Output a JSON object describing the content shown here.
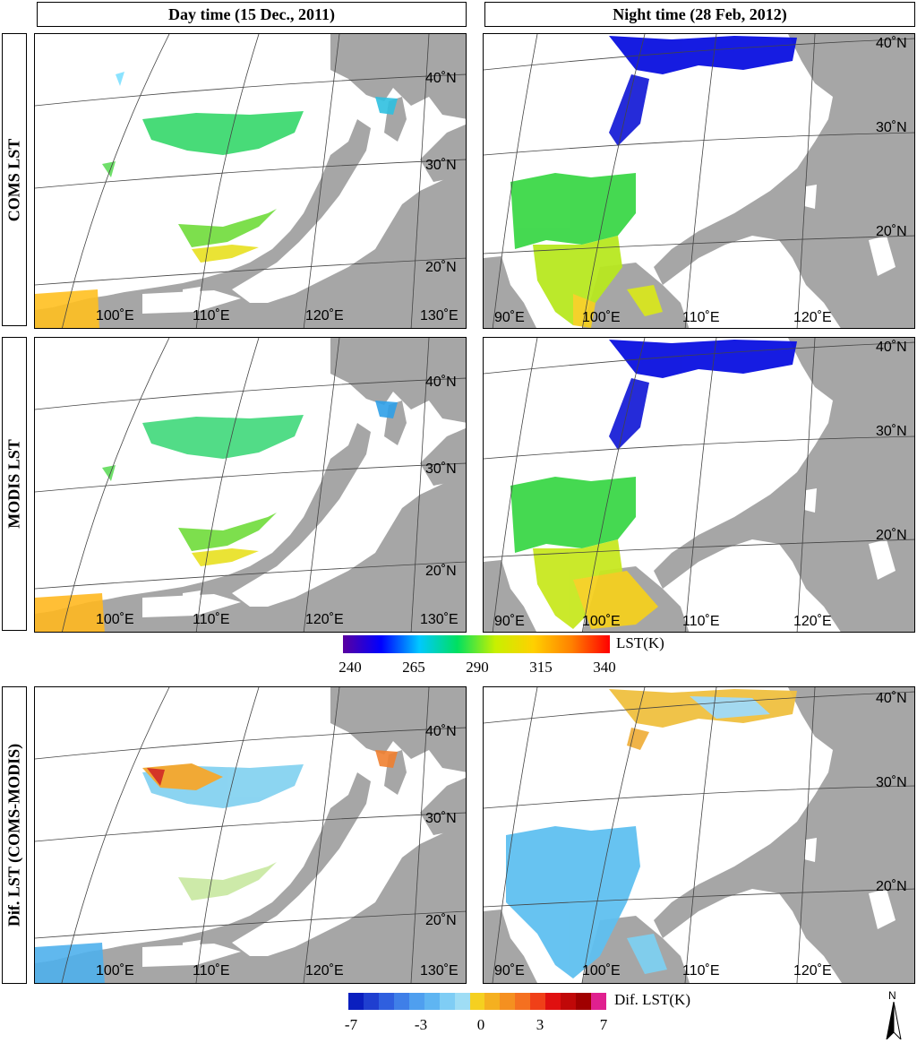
{
  "columns": [
    "Day time (15 Dec., 2011)",
    "Night time (28 Feb, 2012)"
  ],
  "rows": [
    "COMS LST",
    "MODIS LST",
    "Dif. LST (COMS-MODIS)"
  ],
  "day_labels": {
    "lat": [
      "40˚N",
      "30˚N",
      "20˚N"
    ],
    "lon": [
      "100˚E",
      "110˚E",
      "120˚E",
      "130˚E"
    ]
  },
  "night_labels": {
    "lat": [
      "40˚N",
      "30˚N",
      "20˚N"
    ],
    "lon": [
      "90˚E",
      "100˚E",
      "110˚E",
      "120˚E"
    ]
  },
  "colorbar_lst": {
    "title": "LST(K)",
    "ticks": [
      "240",
      "265",
      "290",
      "315",
      "340"
    ],
    "colors": [
      "#5a00a0",
      "#0000ff",
      "#00c8ff",
      "#00e060",
      "#c8f000",
      "#ffd000",
      "#ff8000",
      "#ff0000"
    ]
  },
  "colorbar_dif": {
    "title": "Dif. LST(K)",
    "ticks": [
      "-7",
      "-3",
      "0",
      "3",
      "7"
    ],
    "colors": [
      "#0a1fbf",
      "#1f3fd0",
      "#2f5fdf",
      "#3f7fe8",
      "#4f9fef",
      "#5fb5f2",
      "#7fcdf5",
      "#9fddf5",
      "#f5d020",
      "#f5b020",
      "#f59020",
      "#f57020",
      "#f04018",
      "#e01010",
      "#c00808",
      "#a00000",
      "#e0208f"
    ]
  },
  "north_arrow": "N",
  "colors": {
    "land": "#a6a6a6",
    "sea": "#ffffff"
  }
}
